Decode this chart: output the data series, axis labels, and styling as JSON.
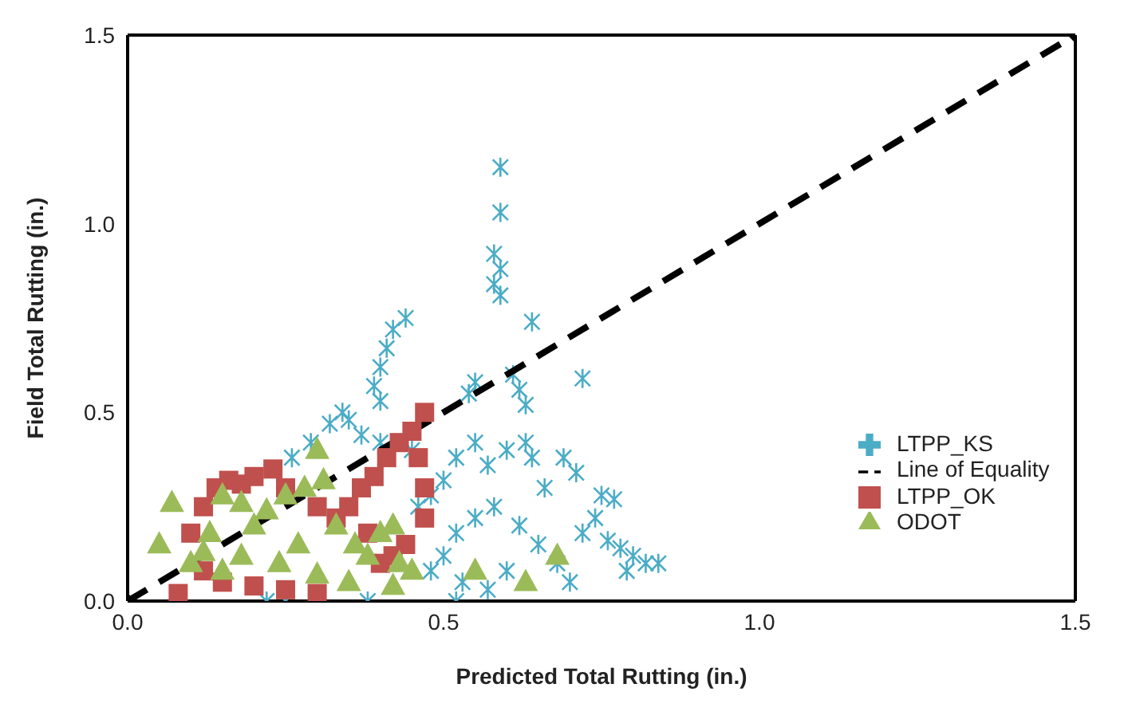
{
  "chart_data": {
    "type": "scatter",
    "xlabel": "Predicted Total Rutting (in.)",
    "ylabel": "Field Total Rutting (in.)",
    "xlim": [
      0,
      1.5
    ],
    "ylim": [
      0,
      1.5
    ],
    "xticks": [
      {
        "value": 0,
        "label": "0.0"
      },
      0.5,
      {
        "value": 1,
        "label": "1.0"
      },
      1.5
    ],
    "yticks": [
      {
        "value": 0,
        "label": "0.0"
      },
      0.5,
      {
        "value": 1,
        "label": "1.0"
      },
      1.5
    ],
    "grid": false,
    "legend": "bottom right",
    "series": [
      {
        "name": "LTPP_KS",
        "color": "#4bacc6",
        "marker": "cross",
        "x": [
          0.59,
          0.59,
          0.58,
          0.59,
          0.58,
          0.59,
          0.64,
          0.72,
          0.61,
          0.62,
          0.63,
          0.55,
          0.54,
          0.44,
          0.42,
          0.41,
          0.4,
          0.39,
          0.4,
          0.34,
          0.32,
          0.35,
          0.29,
          0.26,
          0.37,
          0.4,
          0.45,
          0.55,
          0.52,
          0.57,
          0.6,
          0.63,
          0.64,
          0.69,
          0.71,
          0.66,
          0.75,
          0.77,
          0.74,
          0.72,
          0.76,
          0.78,
          0.8,
          0.82,
          0.84,
          0.79,
          0.7,
          0.68,
          0.65,
          0.62,
          0.58,
          0.55,
          0.52,
          0.5,
          0.48,
          0.53,
          0.57,
          0.6,
          0.52,
          0.38,
          0.22,
          0.25,
          0.48,
          0.5,
          0.46
        ],
        "values": [
          1.15,
          1.03,
          0.92,
          0.88,
          0.84,
          0.81,
          0.74,
          0.59,
          0.6,
          0.56,
          0.52,
          0.58,
          0.55,
          0.75,
          0.72,
          0.67,
          0.62,
          0.57,
          0.53,
          0.5,
          0.47,
          0.48,
          0.42,
          0.38,
          0.44,
          0.42,
          0.4,
          0.42,
          0.38,
          0.36,
          0.4,
          0.42,
          0.38,
          0.38,
          0.34,
          0.3,
          0.28,
          0.27,
          0.22,
          0.18,
          0.16,
          0.14,
          0.12,
          0.1,
          0.1,
          0.08,
          0.05,
          0.1,
          0.15,
          0.2,
          0.25,
          0.22,
          0.18,
          0.12,
          0.08,
          0.05,
          0.03,
          0.08,
          0,
          0,
          0,
          0,
          0.28,
          0.32,
          0.25
        ]
      },
      {
        "name": "Line of Equality",
        "type": "line",
        "color": "#000000",
        "marker": "diamond",
        "line_style": "dashed",
        "x": [
          0,
          1.5
        ],
        "values": [
          0,
          1.5
        ]
      },
      {
        "name": "LTPP_OK",
        "color": "#c0504d",
        "marker": "square",
        "x": [
          0.08,
          0.1,
          0.12,
          0.14,
          0.16,
          0.18,
          0.2,
          0.23,
          0.25,
          0.28,
          0.3,
          0.33,
          0.35,
          0.37,
          0.39,
          0.41,
          0.43,
          0.45,
          0.47,
          0.46,
          0.47,
          0.47,
          0.44,
          0.4,
          0.35,
          0.3,
          0.25,
          0.2,
          0.15,
          0.12,
          0.38,
          0.42
        ],
        "values": [
          0.02,
          0.18,
          0.25,
          0.3,
          0.32,
          0.31,
          0.33,
          0.35,
          0.3,
          null,
          0.25,
          0.22,
          0.25,
          0.3,
          0.33,
          0.38,
          0.42,
          0.45,
          0.5,
          0.38,
          0.3,
          0.22,
          0.15,
          0.1,
          null,
          0.02,
          0.03,
          0.04,
          0.05,
          0.08,
          0.18,
          0.12
        ]
      },
      {
        "name": "ODOT",
        "color": "#9bbb59",
        "marker": "triangle",
        "x": [
          0.07,
          0.05,
          0.1,
          0.13,
          0.15,
          0.18,
          0.2,
          0.22,
          0.25,
          0.28,
          0.3,
          0.31,
          0.27,
          0.24,
          0.18,
          0.15,
          0.12,
          0.33,
          0.36,
          0.38,
          0.4,
          0.42,
          0.43,
          0.45,
          0.42,
          0.55,
          0.63,
          0.68,
          0.35,
          0.3
        ],
        "values": [
          0.26,
          0.15,
          0.1,
          0.18,
          0.28,
          0.26,
          0.2,
          0.24,
          0.28,
          0.3,
          0.4,
          0.32,
          0.15,
          0.1,
          0.12,
          0.08,
          0.13,
          0.2,
          0.15,
          0.12,
          0.18,
          0.2,
          0.1,
          0.08,
          0.04,
          0.08,
          0.05,
          0.12,
          0.05,
          0.07
        ]
      }
    ]
  }
}
